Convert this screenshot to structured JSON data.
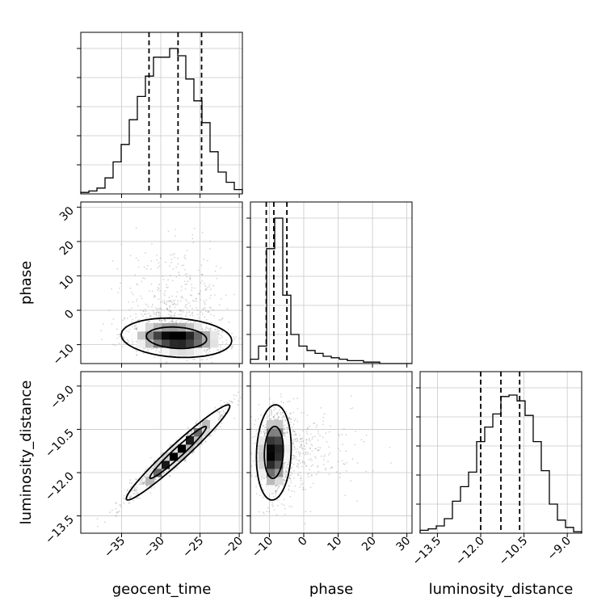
{
  "chart_data": {
    "type": "corner",
    "parameters": [
      "geocent_time",
      "phase",
      "luminosity_distance"
    ],
    "axis_labels": [
      "geocent_time",
      "phase",
      "luminosity_distance"
    ],
    "ranges": {
      "geocent_time": [
        -40.2,
        -19.6
      ],
      "phase": [
        -15.5,
        31.5
      ],
      "luminosity_distance": [
        -14.1,
        -8.5
      ]
    },
    "ticks": {
      "geocent_time": {
        "values": [
          -35,
          -30,
          -25,
          -20
        ],
        "labels": [
          "−35",
          "−30",
          "−25",
          "−20"
        ]
      },
      "phase": {
        "values": [
          -10,
          0,
          10,
          20,
          30
        ],
        "labels": [
          "−10",
          "0",
          "10",
          "20",
          "30"
        ]
      },
      "luminosity_distance": {
        "values": [
          -13.5,
          -12.0,
          -10.5,
          -9.0
        ],
        "labels": [
          "−13.5",
          "−12.0",
          "−10.5",
          "−9.0"
        ]
      }
    },
    "quantiles": {
      "geocent_time": [
        -31.5,
        -27.8,
        -24.8
      ],
      "phase": [
        -10.9,
        -8.7,
        -4.9
      ],
      "luminosity_distance": [
        -12.0,
        -11.3,
        -10.65
      ]
    },
    "histograms": {
      "geocent_time": {
        "edges": [
          -40.2,
          -39.17,
          -38.14,
          -37.11,
          -36.08,
          -35.05,
          -34.02,
          -32.99,
          -31.96,
          -30.93,
          -29.9,
          -28.87,
          -27.84,
          -26.81,
          -25.78,
          -24.75,
          -23.72,
          -22.69,
          -21.66,
          -20.63,
          -19.6
        ],
        "counts": [
          0.01,
          0.02,
          0.04,
          0.11,
          0.22,
          0.34,
          0.51,
          0.67,
          0.81,
          0.94,
          0.94,
          1.0,
          0.95,
          0.79,
          0.64,
          0.49,
          0.29,
          0.15,
          0.08,
          0.03
        ]
      },
      "phase": {
        "edges": [
          -15.5,
          -13.15,
          -10.8,
          -8.45,
          -6.1,
          -3.75,
          -1.4,
          0.95,
          3.3,
          5.65,
          8.0,
          10.35,
          12.7,
          15.05,
          17.4,
          19.75,
          22.1,
          24.45,
          26.8,
          29.15,
          31.5
        ],
        "counts": [
          0.03,
          0.12,
          0.79,
          1.0,
          0.47,
          0.2,
          0.12,
          0.09,
          0.07,
          0.05,
          0.04,
          0.03,
          0.02,
          0.02,
          0.01,
          0.01,
          0.0,
          0.0,
          0.0,
          0.0
        ]
      },
      "luminosity_distance": {
        "edges": [
          -14.1,
          -13.82,
          -13.54,
          -13.26,
          -12.98,
          -12.7,
          -12.42,
          -12.14,
          -11.86,
          -11.58,
          -11.3,
          -11.02,
          -10.74,
          -10.46,
          -10.18,
          -9.9,
          -9.62,
          -9.34,
          -9.06,
          -8.78,
          -8.5
        ],
        "counts": [
          0.02,
          0.03,
          0.05,
          0.1,
          0.22,
          0.32,
          0.42,
          0.63,
          0.73,
          0.82,
          0.94,
          0.95,
          0.91,
          0.81,
          0.63,
          0.43,
          0.2,
          0.09,
          0.04,
          0.01
        ]
      }
    },
    "densities": {
      "phase_vs_geocent_time": {
        "x_mean": -28.0,
        "y_mean": -8.0,
        "x_sd": 3.2,
        "y_sd": 2.6,
        "corr": -0.15,
        "grid": true
      },
      "luminosity_distance_vs_geocent_time": {
        "x_mean": -27.8,
        "y_mean": -11.3,
        "x_sd": 3.0,
        "y_sd": 0.75,
        "corr": 0.97,
        "grid": true
      },
      "luminosity_distance_vs_phase": {
        "x_mean": -8.7,
        "y_mean": -11.3,
        "x_sd": 2.3,
        "y_sd": 0.75,
        "corr": 0.1,
        "grid": true
      }
    }
  }
}
